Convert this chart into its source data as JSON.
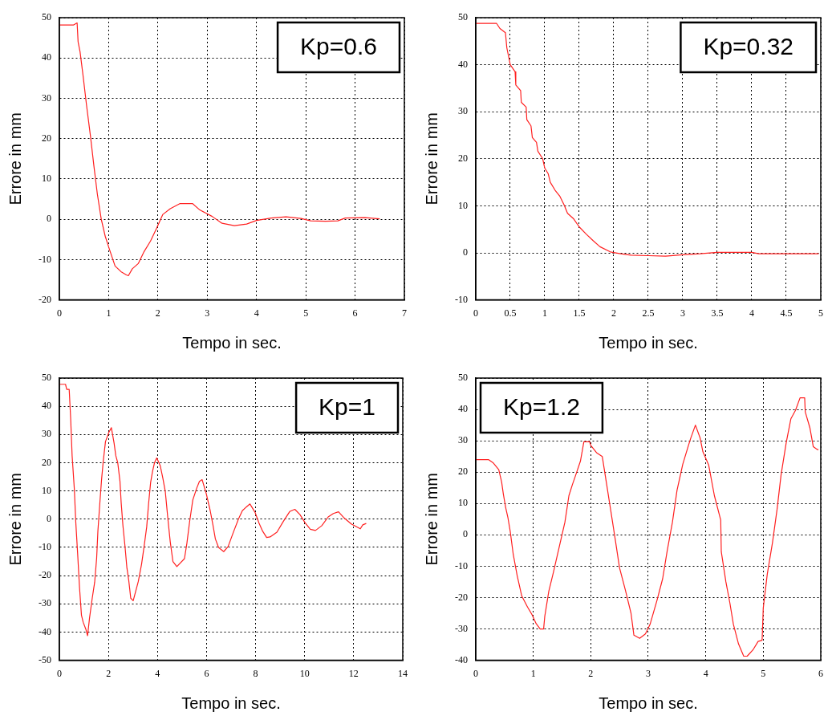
{
  "chart_data": [
    {
      "type": "line",
      "xlabel": "Tempo in sec.",
      "ylabel": "Errore in mm",
      "annotations": [
        "Kp=0.6"
      ],
      "xlim": [
        0,
        7
      ],
      "ylim": [
        -20,
        50
      ],
      "xticks": [
        0,
        1,
        2,
        3,
        4,
        5,
        6,
        7
      ],
      "yticks": [
        -20,
        -10,
        0,
        10,
        20,
        30,
        40,
        50
      ],
      "grid": true,
      "legend": false,
      "marker": "none",
      "line_style": "solid",
      "series": [
        {
          "color": "#ff2020",
          "x": [
            0,
            0.29,
            0.36,
            0.38,
            0.42,
            0.48,
            0.55,
            0.63,
            0.7,
            0.77,
            0.85,
            0.93,
            1.02,
            1.13,
            1.25,
            1.36,
            1.4,
            1.48,
            1.6,
            1.72,
            1.85,
            1.97,
            2.1,
            2.25,
            2.45,
            2.7,
            2.85,
            3.1,
            3.3,
            3.55,
            3.8,
            4.0,
            4.3,
            4.6,
            4.9,
            5.1,
            5.4,
            5.65,
            5.8,
            6.2,
            6.5
          ],
          "values": [
            48.2,
            48.2,
            48.7,
            44,
            41.5,
            35.7,
            28.4,
            20.7,
            13.3,
            6.3,
            0,
            -4.2,
            -7.6,
            -11.6,
            -13,
            -13.8,
            -14,
            -12.3,
            -11,
            -8,
            -5.4,
            -2.3,
            1.2,
            2.6,
            3.9,
            3.9,
            2.3,
            0.7,
            -1,
            -1.6,
            -1.2,
            -0.3,
            0.3,
            0.6,
            0.2,
            -0.4,
            -0.5,
            -0.4,
            0.3,
            0.4,
            0.1
          ]
        }
      ]
    },
    {
      "type": "line",
      "xlabel": "Tempo in sec.",
      "ylabel": "Errore in mm",
      "annotations": [
        "Kp=0.32"
      ],
      "xlim": [
        0,
        5
      ],
      "ylim": [
        -10,
        50
      ],
      "xticks": [
        0,
        0.5,
        1,
        1.5,
        2,
        2.5,
        3,
        3.5,
        4,
        4.5,
        5
      ],
      "yticks": [
        -10,
        0,
        10,
        20,
        30,
        40,
        50
      ],
      "grid": true,
      "legend": false,
      "marker": "none",
      "line_style": "solid",
      "series": [
        {
          "color": "#ff2020",
          "x": [
            0,
            0.3,
            0.35,
            0.43,
            0.45,
            0.5,
            0.57,
            0.58,
            0.65,
            0.66,
            0.73,
            0.74,
            0.8,
            0.82,
            0.88,
            0.9,
            0.97,
            1.0,
            1.05,
            1.08,
            1.15,
            1.22,
            1.28,
            1.33,
            1.42,
            1.5,
            1.6,
            1.7,
            1.8,
            1.95,
            2.1,
            2.25,
            2.5,
            2.75,
            3.0,
            3.25,
            3.5,
            4.0,
            4.1,
            4.5,
            4.97
          ],
          "values": [
            48.8,
            48.8,
            47.7,
            46.8,
            43.6,
            40,
            38.5,
            35.7,
            34.5,
            32,
            31,
            28.3,
            27,
            24.5,
            23.5,
            21.6,
            20,
            18,
            16.8,
            15,
            13.3,
            12,
            10.2,
            8.4,
            7.2,
            5.5,
            4,
            2.6,
            1.3,
            0.2,
            -0.2,
            -0.5,
            -0.6,
            -0.7,
            -0.4,
            -0.2,
            0.1,
            0.1,
            -0.2,
            -0.2,
            -0.2
          ]
        }
      ]
    },
    {
      "type": "line",
      "xlabel": "Tempo in sec.",
      "ylabel": "Errore in mm",
      "annotations": [
        "Kp=1"
      ],
      "xlim": [
        0,
        14
      ],
      "ylim": [
        -50,
        50
      ],
      "xticks": [
        0,
        2,
        4,
        6,
        8,
        10,
        12,
        14
      ],
      "yticks": [
        -50,
        -40,
        -30,
        -20,
        -10,
        0,
        10,
        20,
        30,
        40,
        50
      ],
      "grid": true,
      "legend": false,
      "marker": "none",
      "line_style": "solid",
      "series": [
        {
          "color": "#ff2020",
          "x": [
            0,
            0.25,
            0.3,
            0.4,
            0.46,
            0.52,
            0.61,
            0.67,
            0.75,
            0.82,
            0.9,
            0.97,
            1.08,
            1.15,
            1.23,
            1.34,
            1.44,
            1.52,
            1.57,
            1.65,
            1.72,
            1.79,
            1.88,
            2.02,
            2.12,
            2.23,
            2.3,
            2.38,
            2.47,
            2.52,
            2.59,
            2.68,
            2.75,
            2.83,
            2.91,
            3.01,
            3.22,
            3.35,
            3.45,
            3.56,
            3.64,
            3.72,
            3.8,
            3.88,
            3.97,
            4.11,
            4.22,
            4.32,
            4.42,
            4.52,
            4.63,
            4.79,
            5.1,
            5.2,
            5.31,
            5.44,
            5.6,
            5.71,
            5.82,
            5.99,
            6.15,
            6.26,
            6.36,
            6.49,
            6.7,
            6.88,
            7.1,
            7.3,
            7.46,
            7.62,
            7.77,
            7.98,
            8.14,
            8.29,
            8.45,
            8.59,
            8.87,
            9.13,
            9.39,
            9.6,
            9.81,
            10.02,
            10.23,
            10.44,
            10.7,
            10.96,
            11.17,
            11.38,
            11.59,
            11.9,
            12.27,
            12.37,
            12.51
          ],
          "values": [
            47.8,
            47.8,
            46,
            46,
            35.8,
            22.5,
            10.7,
            -1.2,
            -13,
            -24,
            -34,
            -36.5,
            -39,
            -41.3,
            -35,
            -28,
            -22.3,
            -13.8,
            -4.3,
            5.7,
            14,
            20.6,
            27.5,
            30.8,
            32.4,
            27,
            22.5,
            20,
            13.5,
            5.8,
            -2.2,
            -10,
            -17,
            -21.8,
            -28,
            -28.9,
            -22,
            -16,
            -10,
            -2.8,
            5.7,
            13,
            17,
            20,
            21.7,
            19,
            14.5,
            9.7,
            0.5,
            -8,
            -15,
            -16.8,
            -14,
            -8.5,
            -0.9,
            6.8,
            11,
            13.4,
            14,
            9,
            3,
            -2,
            -7,
            -10,
            -11.5,
            -9.7,
            -4.5,
            0,
            3,
            4.3,
            5.4,
            2.4,
            -1.4,
            -4.3,
            -6.5,
            -6.3,
            -4.6,
            -0.8,
            2.7,
            3.5,
            1.6,
            -1.3,
            -3.6,
            -4,
            -2.3,
            0.8,
            2,
            2.6,
            0.6,
            -1.7,
            -3.4,
            -2,
            -1.5
          ]
        }
      ]
    },
    {
      "type": "line",
      "xlabel": "Tempo in sec.",
      "ylabel": "Errore in mm",
      "annotations": [
        "Kp=1.2"
      ],
      "xlim": [
        0,
        6
      ],
      "ylim": [
        -40,
        50
      ],
      "xticks": [
        0,
        1,
        2,
        3,
        4,
        5,
        6
      ],
      "yticks": [
        -40,
        -30,
        -20,
        -10,
        0,
        10,
        20,
        30,
        40,
        50
      ],
      "grid": true,
      "legend": false,
      "marker": "none",
      "line_style": "solid",
      "series": [
        {
          "color": "#ff2020",
          "x": [
            0,
            0.22,
            0.3,
            0.4,
            0.45,
            0.48,
            0.52,
            0.56,
            0.6,
            0.65,
            0.72,
            0.8,
            0.9,
            0.98,
            1.05,
            1.12,
            1.18,
            1.2,
            1.27,
            1.35,
            1.45,
            1.55,
            1.62,
            1.68,
            1.75,
            1.82,
            1.88,
            1.98,
            2.0,
            2.1,
            2.2,
            2.27,
            2.35,
            2.43,
            2.5,
            2.6,
            2.7,
            2.75,
            2.85,
            2.95,
            3.03,
            3.15,
            3.25,
            3.33,
            3.42,
            3.5,
            3.6,
            3.7,
            3.74,
            3.82,
            3.9,
            3.95,
            4.05,
            4.15,
            4.26,
            4.27,
            4.35,
            4.42,
            4.48,
            4.57,
            4.66,
            4.72,
            4.82,
            4.91,
            4.98,
            5.0,
            5.07,
            5.16,
            5.24,
            5.31,
            5.4,
            5.48,
            5.56,
            5.64,
            5.72,
            5.73,
            5.81,
            5.87,
            5.94,
            5.96
          ],
          "values": [
            24,
            24,
            23,
            20.8,
            16.8,
            13,
            8.7,
            5.4,
            1,
            -6,
            -13,
            -19.5,
            -23,
            -25.5,
            -28.3,
            -30,
            -30,
            -26,
            -18,
            -12,
            -4,
            4,
            12.5,
            16,
            19.7,
            23.5,
            29.7,
            29.7,
            28.5,
            26.2,
            25,
            16.8,
            7.5,
            -2,
            -10.5,
            -17.5,
            -25,
            -32,
            -33,
            -31.6,
            -28.6,
            -21,
            -14,
            -5,
            4,
            14.2,
            22.5,
            28.6,
            30.9,
            35,
            31,
            26.5,
            22.3,
            12.5,
            4.7,
            -5.4,
            -15,
            -21.8,
            -28.5,
            -34.8,
            -38.7,
            -38.7,
            -36.7,
            -34,
            -33.6,
            -23.3,
            -12.5,
            -2.5,
            8.1,
            19.2,
            29.5,
            37,
            39.7,
            43.7,
            43.7,
            39.2,
            34.2,
            28.1,
            27.2,
            27.2
          ]
        }
      ]
    }
  ]
}
